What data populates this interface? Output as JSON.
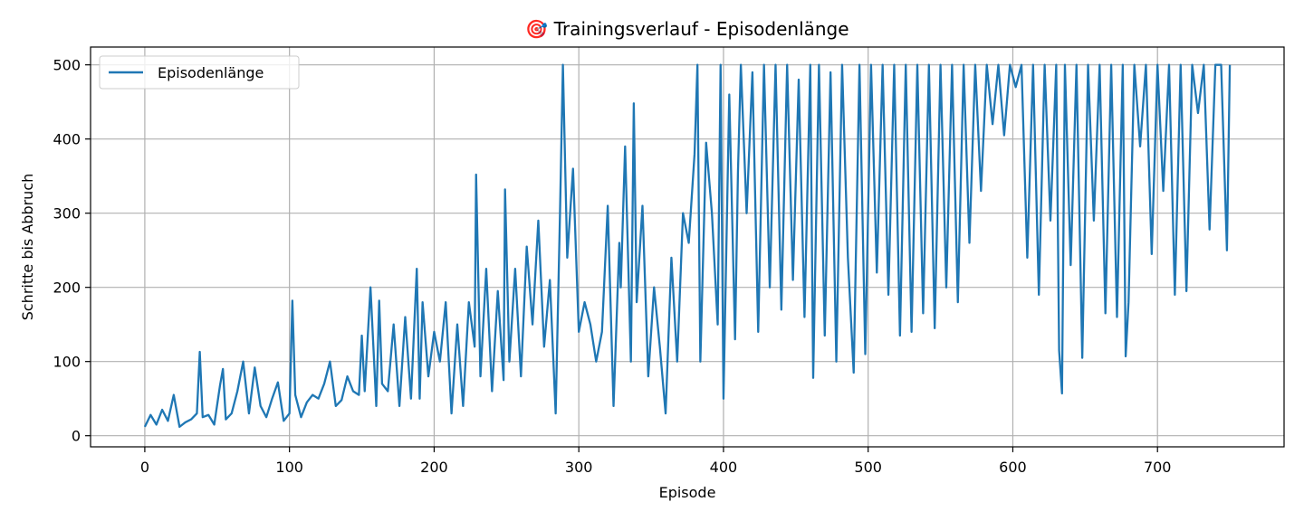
{
  "chart_data": {
    "type": "line",
    "title": "🎯 Trainingsverlauf - Episodenlänge",
    "xlabel": "Episode",
    "ylabel": "Schritte bis Abbruch",
    "xlim": [
      -37.5,
      787.5
    ],
    "ylim": [
      -15,
      524
    ],
    "xticks": [
      0,
      100,
      200,
      300,
      400,
      500,
      600,
      700
    ],
    "yticks": [
      0,
      100,
      200,
      300,
      400,
      500
    ],
    "grid": true,
    "legend": "top-left",
    "line_color": "#1f77b4",
    "series": [
      {
        "name": "Episodenlänge",
        "x": [
          0,
          4,
          8,
          12,
          16,
          20,
          24,
          28,
          32,
          36,
          38,
          40,
          44,
          48,
          52,
          54,
          56,
          60,
          64,
          68,
          72,
          76,
          80,
          84,
          88,
          92,
          96,
          100,
          102,
          104,
          108,
          112,
          116,
          120,
          124,
          128,
          132,
          136,
          140,
          144,
          148,
          150,
          152,
          156,
          160,
          162,
          164,
          168,
          172,
          176,
          180,
          184,
          188,
          190,
          192,
          196,
          200,
          204,
          208,
          212,
          216,
          220,
          224,
          228,
          229,
          232,
          236,
          240,
          244,
          248,
          249,
          252,
          256,
          260,
          264,
          268,
          272,
          276,
          280,
          284,
          287,
          289,
          292,
          296,
          300,
          304,
          308,
          312,
          316,
          320,
          324,
          328,
          329,
          332,
          336,
          338,
          340,
          344,
          348,
          352,
          356,
          360,
          364,
          368,
          372,
          376,
          380,
          382,
          384,
          388,
          392,
          396,
          398,
          400,
          404,
          408,
          410,
          412,
          416,
          420,
          424,
          428,
          432,
          436,
          440,
          444,
          448,
          452,
          456,
          460,
          462,
          466,
          470,
          474,
          478,
          482,
          486,
          490,
          494,
          498,
          502,
          506,
          510,
          514,
          518,
          522,
          526,
          530,
          534,
          538,
          542,
          546,
          550,
          554,
          558,
          562,
          566,
          570,
          574,
          578,
          582,
          586,
          590,
          594,
          598,
          602,
          606,
          610,
          614,
          618,
          622,
          626,
          630,
          632,
          634,
          636,
          640,
          644,
          648,
          652,
          656,
          660,
          664,
          668,
          672,
          676,
          678,
          680,
          684,
          688,
          692,
          696,
          700,
          704,
          708,
          712,
          716,
          720,
          724,
          728,
          732,
          736,
          740,
          744,
          748,
          750
        ],
        "values": [
          12,
          28,
          15,
          35,
          20,
          55,
          12,
          18,
          22,
          30,
          113,
          25,
          28,
          15,
          68,
          90,
          22,
          30,
          60,
          100,
          30,
          92,
          40,
          25,
          50,
          72,
          20,
          30,
          182,
          55,
          25,
          45,
          55,
          50,
          70,
          100,
          40,
          48,
          80,
          60,
          55,
          135,
          60,
          200,
          40,
          182,
          70,
          60,
          150,
          40,
          160,
          50,
          225,
          50,
          180,
          80,
          140,
          100,
          180,
          30,
          150,
          40,
          180,
          120,
          352,
          80,
          225,
          60,
          195,
          75,
          332,
          100,
          225,
          80,
          255,
          150,
          290,
          120,
          210,
          30,
          300,
          500,
          240,
          360,
          140,
          180,
          150,
          100,
          140,
          310,
          40,
          260,
          200,
          390,
          100,
          448,
          180,
          310,
          80,
          200,
          120,
          30,
          240,
          100,
          300,
          260,
          380,
          500,
          100,
          395,
          300,
          150,
          500,
          50,
          460,
          130,
          355,
          500,
          300,
          490,
          140,
          500,
          200,
          500,
          170,
          500,
          210,
          480,
          160,
          500,
          78,
          500,
          135,
          490,
          100,
          500,
          240,
          85,
          500,
          110,
          500,
          220,
          500,
          190,
          500,
          135,
          500,
          140,
          500,
          165,
          500,
          145,
          500,
          200,
          500,
          180,
          500,
          260,
          500,
          330,
          500,
          420,
          500,
          405,
          500,
          470,
          500,
          240,
          500,
          190,
          500,
          290,
          500,
          115,
          57,
          500,
          230,
          500,
          105,
          500,
          290,
          500,
          165,
          500,
          160,
          500,
          107,
          180,
          500,
          390,
          500,
          245,
          500,
          330,
          500,
          190,
          500,
          195,
          500,
          435,
          500,
          278,
          500,
          500,
          250,
          500
        ]
      }
    ]
  }
}
